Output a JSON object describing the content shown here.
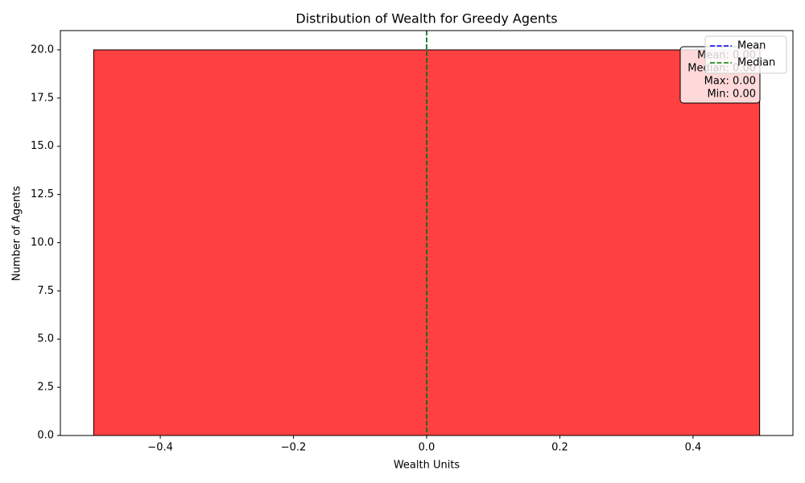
{
  "chart_data": {
    "type": "histogram",
    "title": "Distribution of Wealth for Greedy Agents",
    "x_label": "Wealth Units",
    "y_label": "Number of Agents",
    "bins": [
      -0.5,
      0.5
    ],
    "values": [
      20
    ],
    "color": "#ff4040",
    "xlim": [
      -0.55,
      0.55
    ],
    "xticks": [
      {
        "value": -0.4,
        "label": "−0.4"
      },
      {
        "value": -0.2,
        "label": "−0.2"
      },
      {
        "value": 0,
        "label": "0.0"
      },
      0.2,
      0.4
    ],
    "ylim": [
      0,
      21
    ],
    "yticks": [
      {
        "value": 0,
        "label": "0.0"
      },
      2.5,
      {
        "value": 5,
        "label": "5.0"
      },
      7.5,
      {
        "value": 10,
        "label": "10.0"
      },
      12.5,
      {
        "value": 15,
        "label": "15.0"
      },
      17.5,
      {
        "value": 20,
        "label": "20.0"
      }
    ],
    "series": [
      {
        "name": "Mean",
        "color": "#0000ff",
        "x": 0
      },
      {
        "name": "Median",
        "color": "#008000",
        "x": 0
      }
    ],
    "legend": "upper right",
    "stats_text": [
      "Mean: 0.00",
      "Median: 0.00",
      "Max: 0.00",
      "Min: 0.00"
    ]
  }
}
